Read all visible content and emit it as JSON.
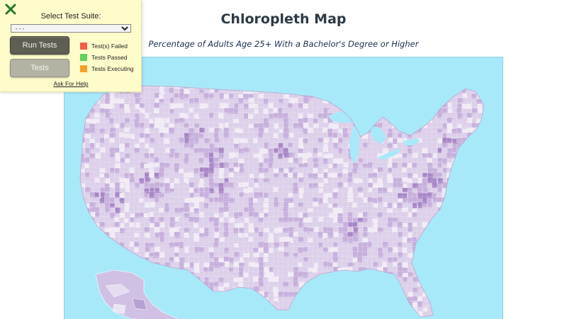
{
  "page": {
    "title": "Chloropleth Map",
    "subtitle": "Percentage of Adults Age 25+ With a Bachelor's Degree or Higher"
  },
  "map": {
    "ocean_color": "#a8e9f9",
    "land_color": "#dbcdea",
    "border_color": "#ffffff",
    "palette": [
      "#f1ebf6",
      "#ddd0ea",
      "#c7b0dc",
      "#a887c6",
      "#8c63b4",
      "#6d3f9a"
    ]
  },
  "test_panel": {
    "close_icon": "close-x-icon",
    "suite_label": "Select Test Suite:",
    "suite_select": {
      "selected": "- - -"
    },
    "run_button": "Run Tests",
    "tests_button": "Tests",
    "legend": [
      {
        "label": "Test(s) Failed",
        "color": "#f45d48"
      },
      {
        "label": "Tests Passed",
        "color": "#5fd35a"
      },
      {
        "label": "Tests Executing",
        "color": "#f5a22a"
      }
    ],
    "help_link": "Ask For Help"
  }
}
